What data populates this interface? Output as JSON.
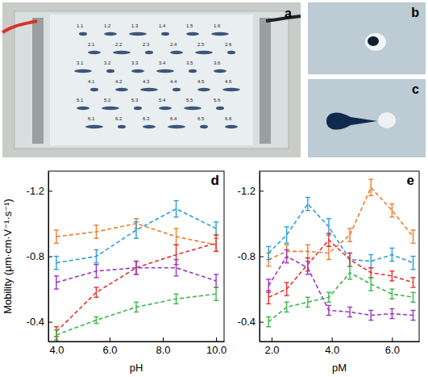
{
  "figure": {
    "panels": [
      {
        "letter": "a",
        "spot_labels": [
          [
            "1.1",
            "1.2",
            "1.3",
            "1.4",
            "1.5",
            "1.6"
          ],
          [
            "2.1",
            "2.2",
            "2.3",
            "2.4",
            "2.5",
            "2.6"
          ],
          [
            "3.1",
            "3.2",
            "3.3",
            "3.4",
            "3.5",
            "3.6"
          ],
          [
            "4.1",
            "4.2",
            "4.3",
            "4.4",
            "4.5",
            "4.6"
          ],
          [
            "5.1",
            "5.2",
            "5.3",
            "5.4",
            "5.5",
            "5.6"
          ],
          [
            "6.1",
            "6.2",
            "6.3",
            "6.4",
            "6.5",
            "6.6"
          ]
        ]
      },
      {
        "letter": "b"
      },
      {
        "letter": "c"
      }
    ]
  },
  "chart_data": [
    {
      "type": "line",
      "panel_label": "d",
      "x_label": "pH",
      "y_label": "Mobility (μm·cm·V⁻¹·s⁻¹)",
      "x": [
        4.0,
        5.5,
        7.0,
        8.5,
        10.0
      ],
      "xlim": [
        3.7,
        10.3
      ],
      "xticks": [
        {
          "value": 4,
          "label": "4.0"
        },
        {
          "value": 6,
          "label": "6.0"
        },
        {
          "value": 8,
          "label": "8.0"
        },
        {
          "value": 10,
          "label": "10.0"
        }
      ],
      "ylim": [
        -0.28,
        -1.32
      ],
      "yticks": [
        -1.2,
        -0.8,
        -0.4
      ],
      "line_style": "dashed",
      "series": [
        {
          "color": "#ef7d2a",
          "values": [
            -0.92,
            -0.95,
            -1.0,
            -0.92,
            -0.87
          ],
          "errors": [
            0.04,
            0.04,
            0.03,
            0.05,
            0.04
          ]
        },
        {
          "color": "#2b9fd8",
          "values": [
            -0.76,
            -0.8,
            -0.96,
            -1.09,
            -0.97
          ],
          "errors": [
            0.04,
            0.04,
            0.05,
            0.05,
            0.04
          ]
        },
        {
          "color": "#e8302b",
          "values": [
            -0.34,
            -0.58,
            -0.73,
            -0.81,
            -0.88
          ],
          "errors": [
            0.03,
            0.03,
            0.04,
            0.06,
            0.05
          ]
        },
        {
          "color": "#9b35c9",
          "values": [
            -0.64,
            -0.71,
            -0.73,
            -0.73,
            -0.65
          ],
          "errors": [
            0.04,
            0.04,
            0.04,
            0.05,
            0.04
          ]
        },
        {
          "color": "#3cb64a",
          "values": [
            -0.32,
            -0.41,
            -0.49,
            -0.54,
            -0.57
          ],
          "errors": [
            0.03,
            0.02,
            0.03,
            0.03,
            0.04
          ]
        }
      ]
    },
    {
      "type": "line",
      "panel_label": "e",
      "x_label": "pM",
      "x": [
        1.9,
        2.5,
        3.2,
        3.9,
        4.6,
        5.3,
        6.0,
        6.7
      ],
      "xlim": [
        1.6,
        6.9
      ],
      "xticks": [
        {
          "value": 2,
          "label": "2.0"
        },
        {
          "value": 4,
          "label": "4.0"
        },
        {
          "value": 6,
          "label": "6.0"
        }
      ],
      "ylim": [
        -0.28,
        -1.32
      ],
      "yticks": [
        -1.2,
        -0.8,
        -0.4
      ],
      "line_style": "dashed",
      "series": [
        {
          "color": "#ef7d2a",
          "values": [
            -0.78,
            -0.83,
            -0.83,
            -0.82,
            -0.93,
            -1.22,
            -1.08,
            -0.92
          ],
          "errors": [
            0.04,
            0.04,
            0.04,
            0.04,
            0.04,
            0.05,
            0.04,
            0.04
          ]
        },
        {
          "color": "#2b9fd8",
          "values": [
            -0.82,
            -0.93,
            -1.12,
            -0.98,
            -0.78,
            -0.77,
            -0.81,
            -0.76
          ],
          "errors": [
            0.04,
            0.05,
            0.04,
            0.05,
            0.04,
            0.04,
            0.04,
            0.04
          ]
        },
        {
          "color": "#e8302b",
          "values": [
            -0.55,
            -0.6,
            -0.75,
            -0.9,
            -0.78,
            -0.7,
            -0.68,
            -0.64
          ],
          "errors": [
            0.04,
            0.04,
            0.04,
            0.04,
            0.04,
            0.03,
            0.03,
            0.03
          ]
        },
        {
          "color": "#9b35c9",
          "values": [
            -0.62,
            -0.8,
            -0.73,
            -0.47,
            -0.46,
            -0.44,
            -0.45,
            -0.44
          ],
          "errors": [
            0.04,
            0.04,
            0.04,
            0.03,
            0.03,
            0.03,
            0.03,
            0.03
          ]
        },
        {
          "color": "#3cb64a",
          "values": [
            -0.4,
            -0.49,
            -0.52,
            -0.55,
            -0.7,
            -0.63,
            -0.57,
            -0.55
          ],
          "errors": [
            0.03,
            0.03,
            0.03,
            0.03,
            0.04,
            0.04,
            0.03,
            0.03
          ]
        }
      ]
    }
  ]
}
